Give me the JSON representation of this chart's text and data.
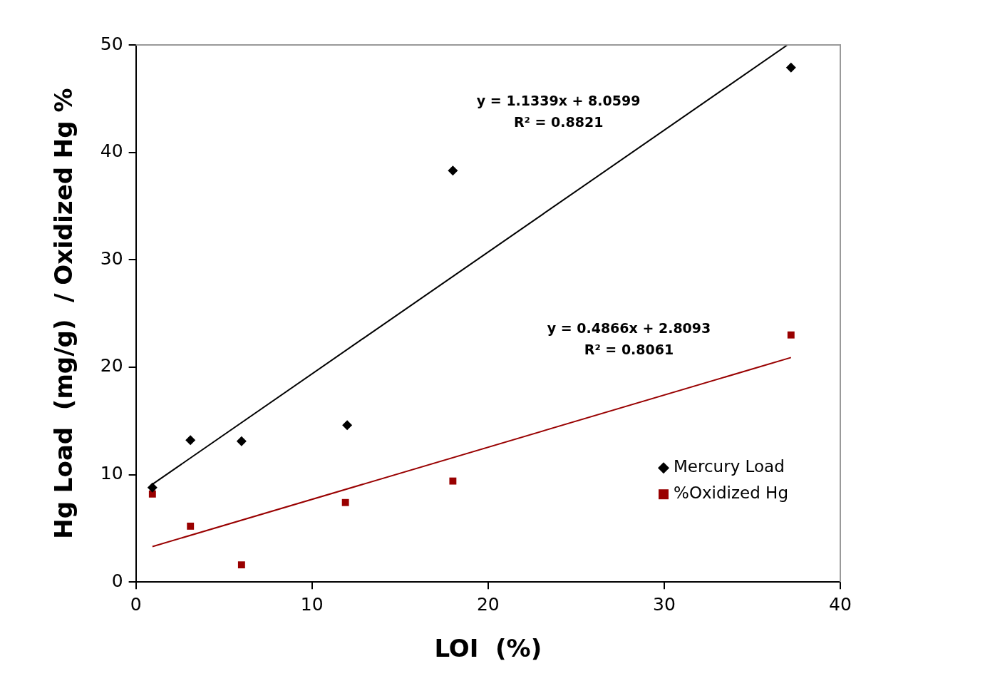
{
  "chart_data": {
    "type": "scatter",
    "xlabel": "LOI  (%)",
    "ylabel": "Hg Load  (mg/g)  / Oxidized Hg %",
    "xlim": [
      0,
      40
    ],
    "xticks": [
      0,
      10,
      20,
      30,
      40
    ],
    "ylim": [
      0,
      50
    ],
    "yticks": [
      0,
      10,
      20,
      30,
      40,
      50
    ],
    "grid": false,
    "legend": "right",
    "series": [
      {
        "name": "Mercury Load",
        "color": "#000000",
        "marker": "diamond",
        "x": [
          0.94,
          3.1,
          6.0,
          12.0,
          18.0,
          37.2
        ],
        "values": [
          8.8,
          13.2,
          13.1,
          14.6,
          38.3,
          47.9
        ]
      },
      {
        "name": "%Oxidized Hg",
        "color": "#990000",
        "marker": "square",
        "x": [
          0.94,
          3.1,
          6.0,
          11.9,
          18.0,
          37.2
        ],
        "values": [
          8.2,
          5.2,
          1.6,
          7.4,
          9.4,
          23.0
        ]
      },
      {
        "type": "line",
        "color": "#000000",
        "marker": "none",
        "x": [
          0.94,
          37.0
        ],
        "values": [
          9.1,
          50
        ]
      },
      {
        "type": "line",
        "color": "#990000",
        "marker": "none",
        "x": [
          0.94,
          37.2
        ],
        "values": [
          3.3,
          20.9
        ]
      }
    ],
    "annotations": [
      "y = 1.1339x + 8.0599",
      "R² = 0.8821",
      "y = 0.4866x + 2.8093",
      "R² = 0.8061"
    ]
  }
}
